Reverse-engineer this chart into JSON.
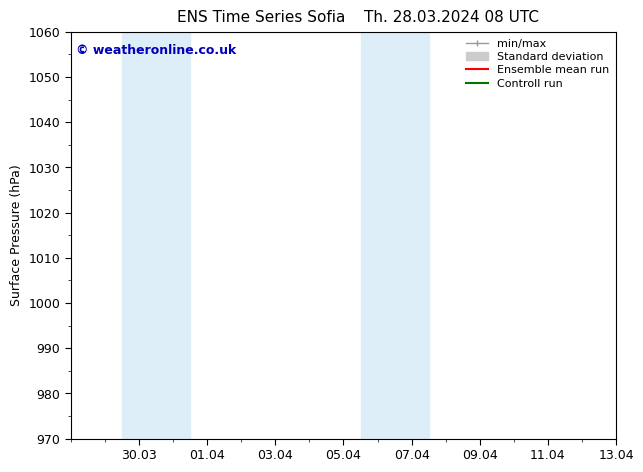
{
  "title_left": "ENS Time Series Sofia",
  "title_right": "Th. 28.03.2024 08 UTC",
  "ylabel": "Surface Pressure (hPa)",
  "ylim": [
    970,
    1060
  ],
  "yticks": [
    970,
    980,
    990,
    1000,
    1010,
    1020,
    1030,
    1040,
    1050,
    1060
  ],
  "xtick_labels": [
    "30.03",
    "01.04",
    "03.04",
    "05.04",
    "07.04",
    "09.04",
    "11.04",
    "13.04"
  ],
  "xtick_positions": [
    2,
    4,
    6,
    8,
    10,
    12,
    14,
    16
  ],
  "x_min": 0,
  "x_max": 16,
  "shaded_regions": [
    {
      "x_start": 1.5,
      "x_end": 2.5
    },
    {
      "x_start": 2.5,
      "x_end": 3.5
    },
    {
      "x_start": 8.5,
      "x_end": 9.5
    },
    {
      "x_start": 9.5,
      "x_end": 10.5
    }
  ],
  "shaded_color": "#ddeef8",
  "background_color": "#ffffff",
  "watermark_text": "© weatheronline.co.uk",
  "watermark_color": "#0000bb",
  "title_fontsize": 11,
  "axis_label_fontsize": 9,
  "tick_fontsize": 9,
  "legend_fontsize": 8,
  "legend_items": [
    {
      "label": "min/max",
      "color": "#aaaaaa"
    },
    {
      "label": "Standard deviation",
      "color": "#cccccc"
    },
    {
      "label": "Ensemble mean run",
      "color": "#ff0000"
    },
    {
      "label": "Controll run",
      "color": "#007700"
    }
  ]
}
